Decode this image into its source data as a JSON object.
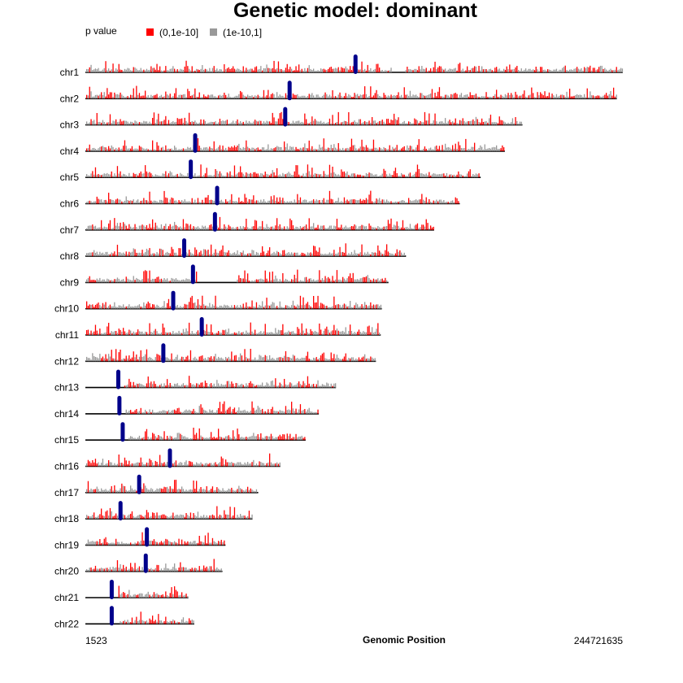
{
  "chart_data": {
    "type": "chromosome-density",
    "title": "Genetic model: dominant",
    "xlabel": "Genomic Position",
    "x_range": [
      1523,
      244721635
    ],
    "x_min_label": "1523",
    "x_max_label": "244721635",
    "legend": {
      "title": "p value",
      "placement": "top-left",
      "entries": [
        {
          "label": "(0,1e-10]",
          "color": "#ff0000"
        },
        {
          "label": "(1e-10,1]",
          "color": "#999999"
        }
      ]
    },
    "colors": {
      "baseline": "#000000",
      "centromere": "#00008b"
    },
    "chromosomes": [
      {
        "name": "chr1",
        "length": 244700000,
        "centromere": 123000000,
        "gaps": [
          [
            140000000,
            145000000
          ]
        ]
      },
      {
        "name": "chr2",
        "length": 242000000,
        "centromere": 93000000,
        "gaps": []
      },
      {
        "name": "chr3",
        "length": 199000000,
        "centromere": 91000000,
        "gaps": []
      },
      {
        "name": "chr4",
        "length": 191000000,
        "centromere": 50000000,
        "gaps": []
      },
      {
        "name": "chr5",
        "length": 180000000,
        "centromere": 48000000,
        "gaps": []
      },
      {
        "name": "chr6",
        "length": 170500000,
        "centromere": 60000000,
        "gaps": []
      },
      {
        "name": "chr7",
        "length": 158800000,
        "centromere": 59000000,
        "gaps": []
      },
      {
        "name": "chr8",
        "length": 146000000,
        "centromere": 45000000,
        "gaps": []
      },
      {
        "name": "chr9",
        "length": 138000000,
        "centromere": 49000000,
        "gaps": [
          [
            51000000,
            68000000
          ]
        ]
      },
      {
        "name": "chr10",
        "length": 135000000,
        "centromere": 40000000,
        "gaps": []
      },
      {
        "name": "chr11",
        "length": 134500000,
        "centromere": 53000000,
        "gaps": []
      },
      {
        "name": "chr12",
        "length": 132300000,
        "centromere": 35500000,
        "gaps": []
      },
      {
        "name": "chr13",
        "length": 114100000,
        "centromere": 15000000,
        "gaps": [
          [
            0,
            17000000
          ]
        ]
      },
      {
        "name": "chr14",
        "length": 106300000,
        "centromere": 15500000,
        "gaps": [
          [
            0,
            17500000
          ]
        ]
      },
      {
        "name": "chr15",
        "length": 100300000,
        "centromere": 17000000,
        "gaps": [
          [
            0,
            19000000
          ]
        ]
      },
      {
        "name": "chr16",
        "length": 88800000,
        "centromere": 38500000,
        "gaps": []
      },
      {
        "name": "chr17",
        "length": 78700000,
        "centromere": 24500000,
        "gaps": []
      },
      {
        "name": "chr18",
        "length": 76100000,
        "centromere": 16000000,
        "gaps": []
      },
      {
        "name": "chr19",
        "length": 63800000,
        "centromere": 28000000,
        "gaps": []
      },
      {
        "name": "chr20",
        "length": 62400000,
        "centromere": 27500000,
        "gaps": []
      },
      {
        "name": "chr21",
        "length": 46900000,
        "centromere": 12000000,
        "gaps": [
          [
            0,
            14000000
          ]
        ]
      },
      {
        "name": "chr22",
        "length": 49600000,
        "centromere": 12000000,
        "gaps": [
          [
            0,
            15000000
          ]
        ]
      }
    ]
  }
}
